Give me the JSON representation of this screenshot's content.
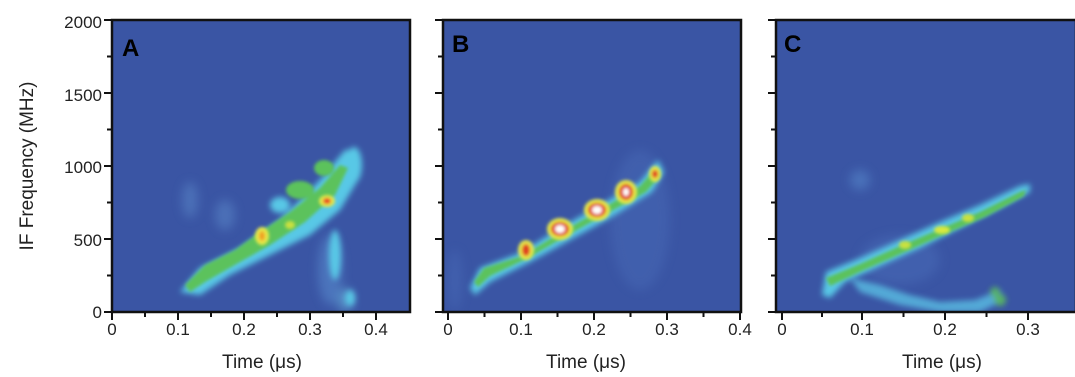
{
  "figure": {
    "ylabel": "IF Frequency (MHz)",
    "xlabel": "Time (μs)",
    "yticks": [
      "0",
      "500",
      "1000",
      "1500",
      "2000"
    ]
  },
  "chart_data": [
    {
      "type": "heatmap",
      "panel_label": "A",
      "xlabel": "Time (μs)",
      "ylabel": "IF Frequency (MHz)",
      "xlim": [
        0,
        0.45
      ],
      "ylim": [
        0,
        2000
      ],
      "xticks": [
        "0",
        "0.1",
        "0.2",
        "0.3",
        "0.4"
      ],
      "background_color": "#3a55a4",
      "features": [
        {
          "t": 0.12,
          "f": 200,
          "level": "green"
        },
        {
          "t": 0.16,
          "f": 330,
          "level": "green"
        },
        {
          "t": 0.22,
          "f": 480,
          "level": "yellow"
        },
        {
          "t": 0.26,
          "f": 620,
          "level": "green"
        },
        {
          "t": 0.32,
          "f": 750,
          "level": "yellow"
        },
        {
          "t": 0.34,
          "f": 900,
          "level": "green"
        },
        {
          "t": 0.35,
          "f": 1050,
          "level": "cyan"
        }
      ]
    },
    {
      "type": "heatmap",
      "panel_label": "B",
      "xlabel": "Time (μs)",
      "xlim": [
        0,
        0.4
      ],
      "ylim": [
        0,
        2000
      ],
      "xticks": [
        "0",
        "0.1",
        "0.2",
        "0.3",
        "0.4"
      ],
      "background_color": "#3a55a4",
      "features": [
        {
          "t": 0.04,
          "f": 240,
          "level": "green"
        },
        {
          "t": 0.11,
          "f": 420,
          "level": "red"
        },
        {
          "t": 0.15,
          "f": 560,
          "level": "white"
        },
        {
          "t": 0.2,
          "f": 690,
          "level": "white"
        },
        {
          "t": 0.24,
          "f": 820,
          "level": "white"
        },
        {
          "t": 0.28,
          "f": 950,
          "level": "red"
        }
      ]
    },
    {
      "type": "heatmap",
      "panel_label": "C",
      "xlabel": "Time (μs)",
      "xlim": [
        0,
        0.37
      ],
      "ylim": [
        0,
        2000
      ],
      "xticks": [
        "0",
        "0.1",
        "0.2",
        "0.3"
      ],
      "background_color": "#3a55a4",
      "features": [
        {
          "t": 0.06,
          "f": 220,
          "level": "green"
        },
        {
          "t": 0.15,
          "f": 450,
          "level": "yellow"
        },
        {
          "t": 0.2,
          "f": 580,
          "level": "yellow"
        },
        {
          "t": 0.25,
          "f": 700,
          "level": "green"
        },
        {
          "t": 0.3,
          "f": 850,
          "level": "green"
        }
      ]
    }
  ]
}
